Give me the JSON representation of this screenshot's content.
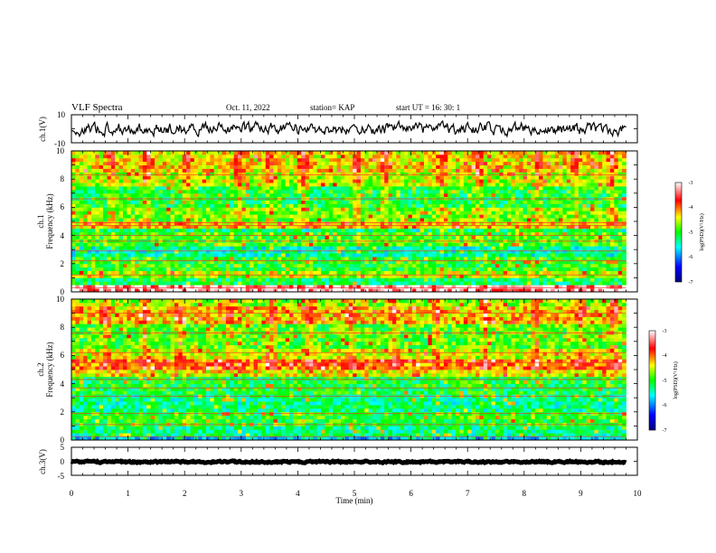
{
  "header": {
    "title": "VLF Spectra",
    "date": "Oct. 11, 2022",
    "station": "station= KAP",
    "start_ut": "start  UT =   16: 30: 1"
  },
  "chart_data": [
    {
      "id": "ch1_waveform",
      "type": "line",
      "ylabel": "ch.1(V)",
      "ylim": [
        -10,
        10
      ],
      "y_tick_labels": [
        "10",
        "-10"
      ],
      "xlim": [
        0,
        10
      ],
      "x_data_extent_min": [
        0,
        9.8
      ],
      "series": [
        {
          "color": "#000000",
          "level_range_V": [
            -5.5,
            5.5
          ]
        }
      ]
    },
    {
      "id": "ch1_spectrogram",
      "type": "heatmap",
      "ylabel": "ch.1\nFrequency (kHz)",
      "ylim": [
        0,
        10
      ],
      "y_tick_labels": [
        "0",
        "2",
        "4",
        "6",
        "8",
        "10"
      ],
      "xlim": [
        0,
        10
      ],
      "x_data_extent_min": [
        0,
        9.8
      ],
      "colorbar": {
        "label": "log(PSD)(V²/Hz)",
        "range": [
          -7,
          -3
        ],
        "tick_labels": [
          "-3",
          "-4",
          "-5",
          "-6",
          "-7"
        ]
      },
      "bands": [
        {
          "f": [
            0,
            0.4
          ],
          "v": -3.3
        },
        {
          "f": [
            0.4,
            1.0
          ],
          "v": -5.2
        },
        {
          "f": [
            1.0,
            1.5
          ],
          "v": -4.6
        },
        {
          "f": [
            1.5,
            2.6
          ],
          "v": -5.0
        },
        {
          "f": [
            2.6,
            3.2
          ],
          "v": -5.4
        },
        {
          "f": [
            3.2,
            4.2
          ],
          "v": -4.9
        },
        {
          "f": [
            4.2,
            4.6
          ],
          "v": -5.3
        },
        {
          "f": [
            4.6,
            5.1
          ],
          "v": -4.3
        },
        {
          "f": [
            5.1,
            6.0
          ],
          "v": -4.8
        },
        {
          "f": [
            6.0,
            7.4
          ],
          "v": -5.1
        },
        {
          "f": [
            7.4,
            8.6
          ],
          "v": -4.6
        },
        {
          "f": [
            8.6,
            10.0
          ],
          "v": -4.4
        }
      ],
      "lines_kHz": [
        0.3,
        1.2,
        2.2,
        2.9,
        3.6,
        4.0,
        4.7,
        4.9,
        6.6,
        8.3
      ],
      "bursts_min": [
        0.7,
        1.35,
        2.05,
        2.95,
        3.5,
        4.1,
        5.05,
        5.55,
        6.55,
        7.2,
        8.25,
        8.9,
        9.55
      ]
    },
    {
      "id": "ch2_spectrogram",
      "type": "heatmap",
      "ylabel": "ch.2\nFrequency (kHz)",
      "ylim": [
        0,
        10
      ],
      "y_tick_labels": [
        "0",
        "2",
        "4",
        "6",
        "8",
        "10"
      ],
      "xlim": [
        0,
        10
      ],
      "x_data_extent_min": [
        0,
        9.8
      ],
      "colorbar": {
        "label": "log(PSD)(V²/Hz)",
        "range": [
          -7,
          -3
        ],
        "tick_labels": [
          "-3",
          "-4",
          "-5",
          "-6",
          "-7"
        ]
      },
      "bands": [
        {
          "f": [
            0,
            0.3
          ],
          "v": -5.7
        },
        {
          "f": [
            0.3,
            0.9
          ],
          "v": -5.3
        },
        {
          "f": [
            0.9,
            2.0
          ],
          "v": -5.0
        },
        {
          "f": [
            2.0,
            3.2
          ],
          "v": -5.3
        },
        {
          "f": [
            3.2,
            4.4
          ],
          "v": -5.1
        },
        {
          "f": [
            4.4,
            5.0
          ],
          "v": -4.4
        },
        {
          "f": [
            5.0,
            5.7
          ],
          "v": -4.0
        },
        {
          "f": [
            5.7,
            6.4
          ],
          "v": -4.5
        },
        {
          "f": [
            6.4,
            8.2
          ],
          "v": -4.9
        },
        {
          "f": [
            8.2,
            9.6
          ],
          "v": -4.3
        },
        {
          "f": [
            9.6,
            10.0
          ],
          "v": -4.7
        }
      ],
      "lines_kHz": [
        0.25,
        1.1,
        1.9,
        3.1,
        3.7,
        4.3,
        5.5,
        6.2,
        7.6,
        9.0
      ],
      "bursts_min": [
        0.6,
        1.3,
        1.9,
        2.8,
        3.55,
        4.2,
        4.95,
        5.7,
        6.45,
        7.3,
        8.2,
        9.0,
        9.6
      ]
    },
    {
      "id": "ch3_waveform",
      "type": "line",
      "ylabel": "ch.3(V)",
      "xlabel": "Time (min)",
      "ylim": [
        -5,
        5
      ],
      "y_tick_labels": [
        "5",
        "0",
        "-5"
      ],
      "xlim": [
        0,
        10
      ],
      "x_tick_labels": [
        "0",
        "1",
        "2",
        "3",
        "4",
        "5",
        "6",
        "7",
        "8",
        "9",
        "10"
      ],
      "x_data_extent_min": [
        0,
        9.8
      ],
      "series": [
        {
          "color": "#000000",
          "level_range_V": [
            -0.6,
            0.2
          ]
        }
      ]
    }
  ]
}
